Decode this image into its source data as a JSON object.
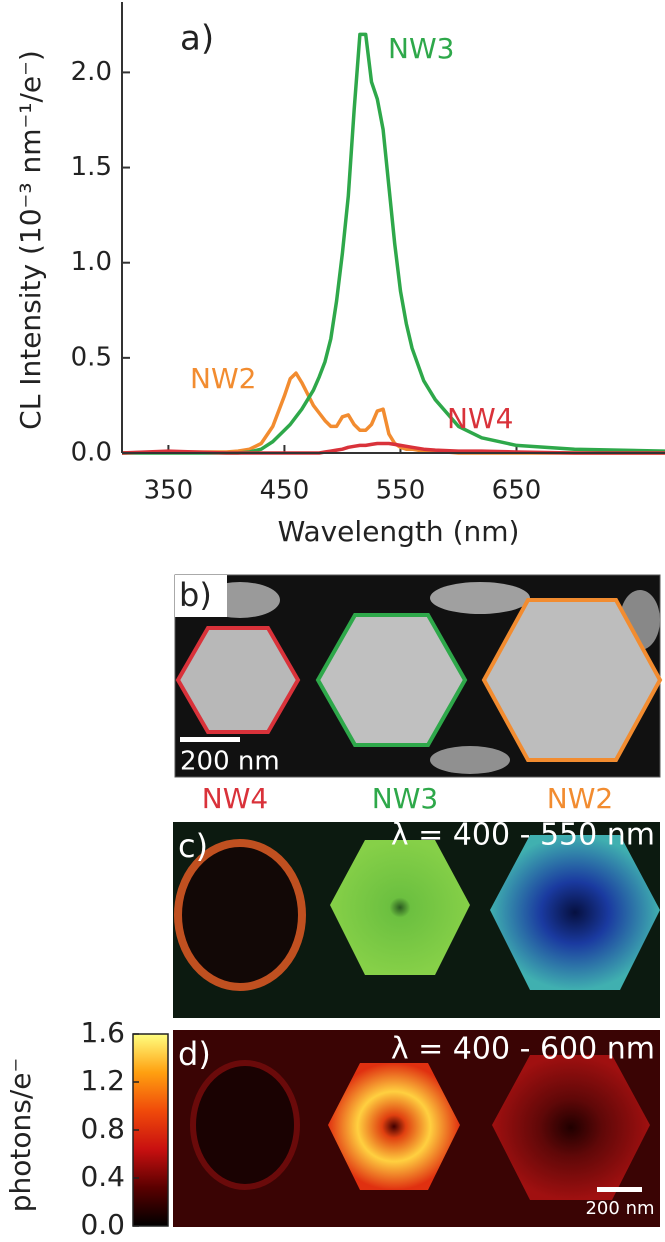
{
  "chart_data": [
    {
      "type": "line",
      "label": "a)",
      "ylabel": "CL Intensity (10⁻³ nm⁻¹/e⁻)",
      "xlabel": "Wavelength (nm)",
      "xlim": [
        310,
        778
      ],
      "xticks": [
        350,
        450,
        550,
        650
      ],
      "ylim": [
        0,
        2.37
      ],
      "yticks": [
        {
          "value": 0,
          "label": "0.0"
        },
        {
          "value": 0.5,
          "label": "0.5"
        },
        {
          "value": 1,
          "label": "1.0"
        },
        {
          "value": 1.5,
          "label": "1.5"
        },
        {
          "value": 2,
          "label": "2.0"
        }
      ],
      "x": [
        310,
        350,
        400,
        410,
        420,
        430,
        440,
        450,
        455,
        460,
        465,
        470,
        475,
        480,
        485,
        490,
        495,
        500,
        505,
        510,
        515,
        520,
        525,
        530,
        535,
        540,
        545,
        550,
        555,
        560,
        570,
        580,
        600,
        620,
        650,
        700,
        778
      ],
      "series": [
        {
          "name": "NW2",
          "color": "#f28c30",
          "values": [
            0,
            0.005,
            0.005,
            0.01,
            0.02,
            0.05,
            0.14,
            0.3,
            0.39,
            0.42,
            0.37,
            0.31,
            0.25,
            0.21,
            0.17,
            0.14,
            0.14,
            0.19,
            0.2,
            0.15,
            0.12,
            0.12,
            0.15,
            0.22,
            0.23,
            0.1,
            0.05,
            0.03,
            0.02,
            0.02,
            0.01,
            0.01,
            0,
            0,
            0,
            0,
            0
          ]
        },
        {
          "name": "NW3",
          "color": "#2ea84a",
          "values": [
            0,
            0,
            0,
            0,
            0.005,
            0.02,
            0.06,
            0.12,
            0.15,
            0.19,
            0.23,
            0.28,
            0.33,
            0.4,
            0.48,
            0.6,
            0.8,
            1.05,
            1.35,
            1.8,
            2.2,
            2.2,
            1.95,
            1.86,
            1.7,
            1.4,
            1.1,
            0.85,
            0.68,
            0.55,
            0.38,
            0.28,
            0.14,
            0.08,
            0.04,
            0.02,
            0.01
          ]
        },
        {
          "name": "NW4",
          "color": "#d9323a",
          "values": [
            0,
            0.01,
            0,
            0,
            0,
            0,
            0,
            0,
            0,
            0,
            0,
            0,
            0,
            0,
            0.005,
            0.01,
            0.015,
            0.02,
            0.03,
            0.035,
            0.04,
            0.04,
            0.045,
            0.05,
            0.05,
            0.05,
            0.045,
            0.04,
            0.035,
            0.03,
            0.02,
            0.015,
            0.01,
            0.01,
            0.005,
            0,
            0
          ]
        }
      ]
    },
    {
      "type": "colorbar",
      "ylabel": "photons/e⁻",
      "ylim": [
        0,
        1.6
      ],
      "yticks": [
        {
          "value": 0,
          "label": "0.0"
        },
        {
          "value": 0.4,
          "label": "0.4"
        },
        {
          "value": 0.8,
          "label": "0.8"
        },
        {
          "value": 1.2,
          "label": "1.2"
        },
        {
          "value": 1.6,
          "label": "1.6"
        }
      ],
      "colors": [
        "#000000",
        "#5a0000",
        "#c81010",
        "#f04a0a",
        "#ffa010",
        "#ffff80"
      ]
    }
  ],
  "panels": {
    "b": {
      "label": "b)",
      "scale_bar": "200 nm"
    },
    "c": {
      "label": "c)",
      "range": "λ = 400 - 550 nm"
    },
    "d": {
      "label": "d)",
      "range": "λ = 400 - 600 nm",
      "scale_bar": "200 nm"
    }
  }
}
